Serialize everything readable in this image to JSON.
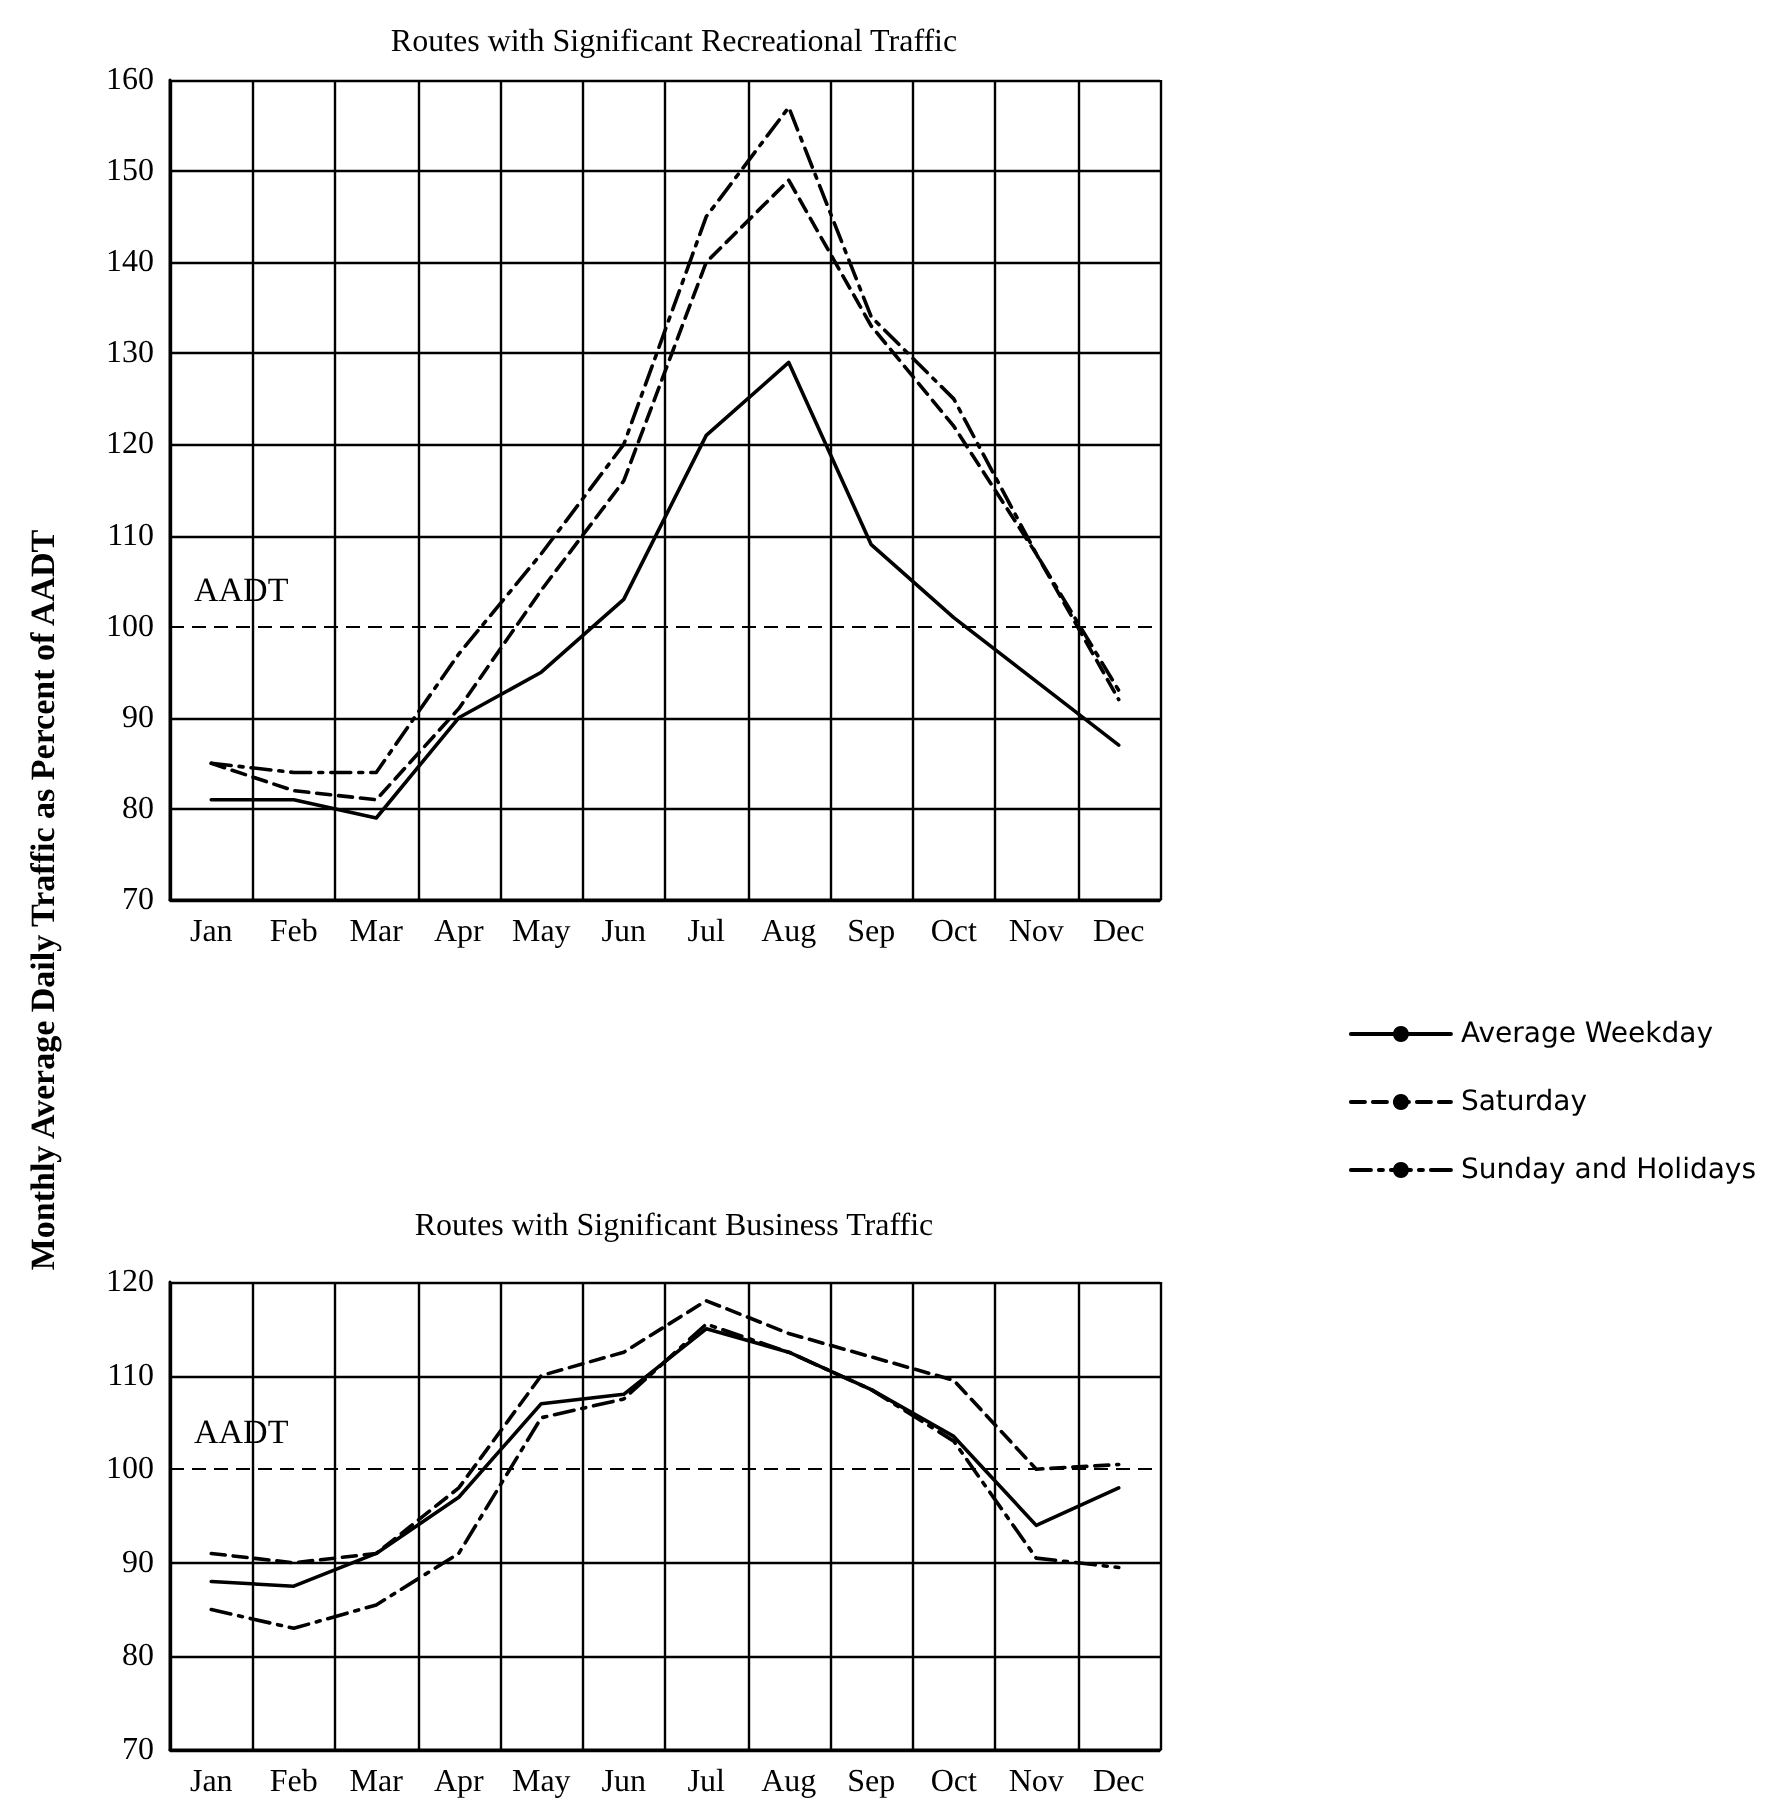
{
  "chart_data": [
    {
      "type": "line",
      "title": "Routes with Significant Recreational Traffic",
      "ylabel": "Monthly Average Daily Traffic as Percent of AADT",
      "categories": [
        "Jan",
        "Feb",
        "Mar",
        "Apr",
        "May",
        "Jun",
        "Jul",
        "Aug",
        "Sep",
        "Oct",
        "Nov",
        "Dec"
      ],
      "series": [
        {
          "name": "Average Weekday",
          "color": "#000000",
          "line_style": "solid",
          "values": [
            81,
            81,
            79,
            90,
            95,
            103,
            121,
            129,
            109,
            101,
            94,
            87
          ]
        },
        {
          "name": "Saturday",
          "color": "#000000",
          "line_style": "dashed",
          "values": [
            85,
            82,
            81,
            91,
            104,
            116,
            140,
            149,
            133,
            122,
            108,
            92
          ]
        },
        {
          "name": "Sunday and Holidays",
          "color": "#000000",
          "line_style": "dashdot",
          "values": [
            85,
            84,
            84,
            97,
            108,
            120,
            145,
            157,
            134,
            125,
            108,
            93
          ]
        }
      ],
      "ylim": [
        70,
        160
      ],
      "yticks": [
        70,
        80,
        90,
        100,
        110,
        120,
        130,
        140,
        150,
        160
      ],
      "grid": true,
      "legend": "right",
      "ref_lines": [
        {
          "axis": "y",
          "value": 100,
          "label": "AADT",
          "line_style": "dashed"
        }
      ]
    },
    {
      "type": "line",
      "title": "Routes with Significant Business Traffic",
      "categories": [
        "Jan",
        "Feb",
        "Mar",
        "Apr",
        "May",
        "Jun",
        "Jul",
        "Aug",
        "Sep",
        "Oct",
        "Nov",
        "Dec"
      ],
      "series": [
        {
          "color": "#000000",
          "line_style": "solid",
          "values": [
            88,
            87.5,
            91,
            97,
            107,
            108,
            115,
            112.5,
            108.5,
            103.5,
            94,
            98
          ]
        },
        {
          "color": "#000000",
          "line_style": "dashed",
          "values": [
            91,
            90,
            91,
            98,
            110,
            112.5,
            118,
            114.5,
            112,
            109.5,
            100,
            100.5
          ]
        },
        {
          "color": "#000000",
          "line_style": "dashdot",
          "values": [
            85,
            83,
            85.5,
            91,
            105.5,
            107.5,
            115.5,
            112.5,
            108.5,
            103,
            90.5,
            89.5
          ]
        }
      ],
      "ylim": [
        70,
        120
      ],
      "yticks": [
        70,
        80,
        90,
        100,
        110,
        120
      ],
      "grid": true,
      "ref_lines": [
        {
          "axis": "y",
          "value": 100,
          "label": "AADT",
          "line_style": "dashed"
        }
      ]
    }
  ]
}
